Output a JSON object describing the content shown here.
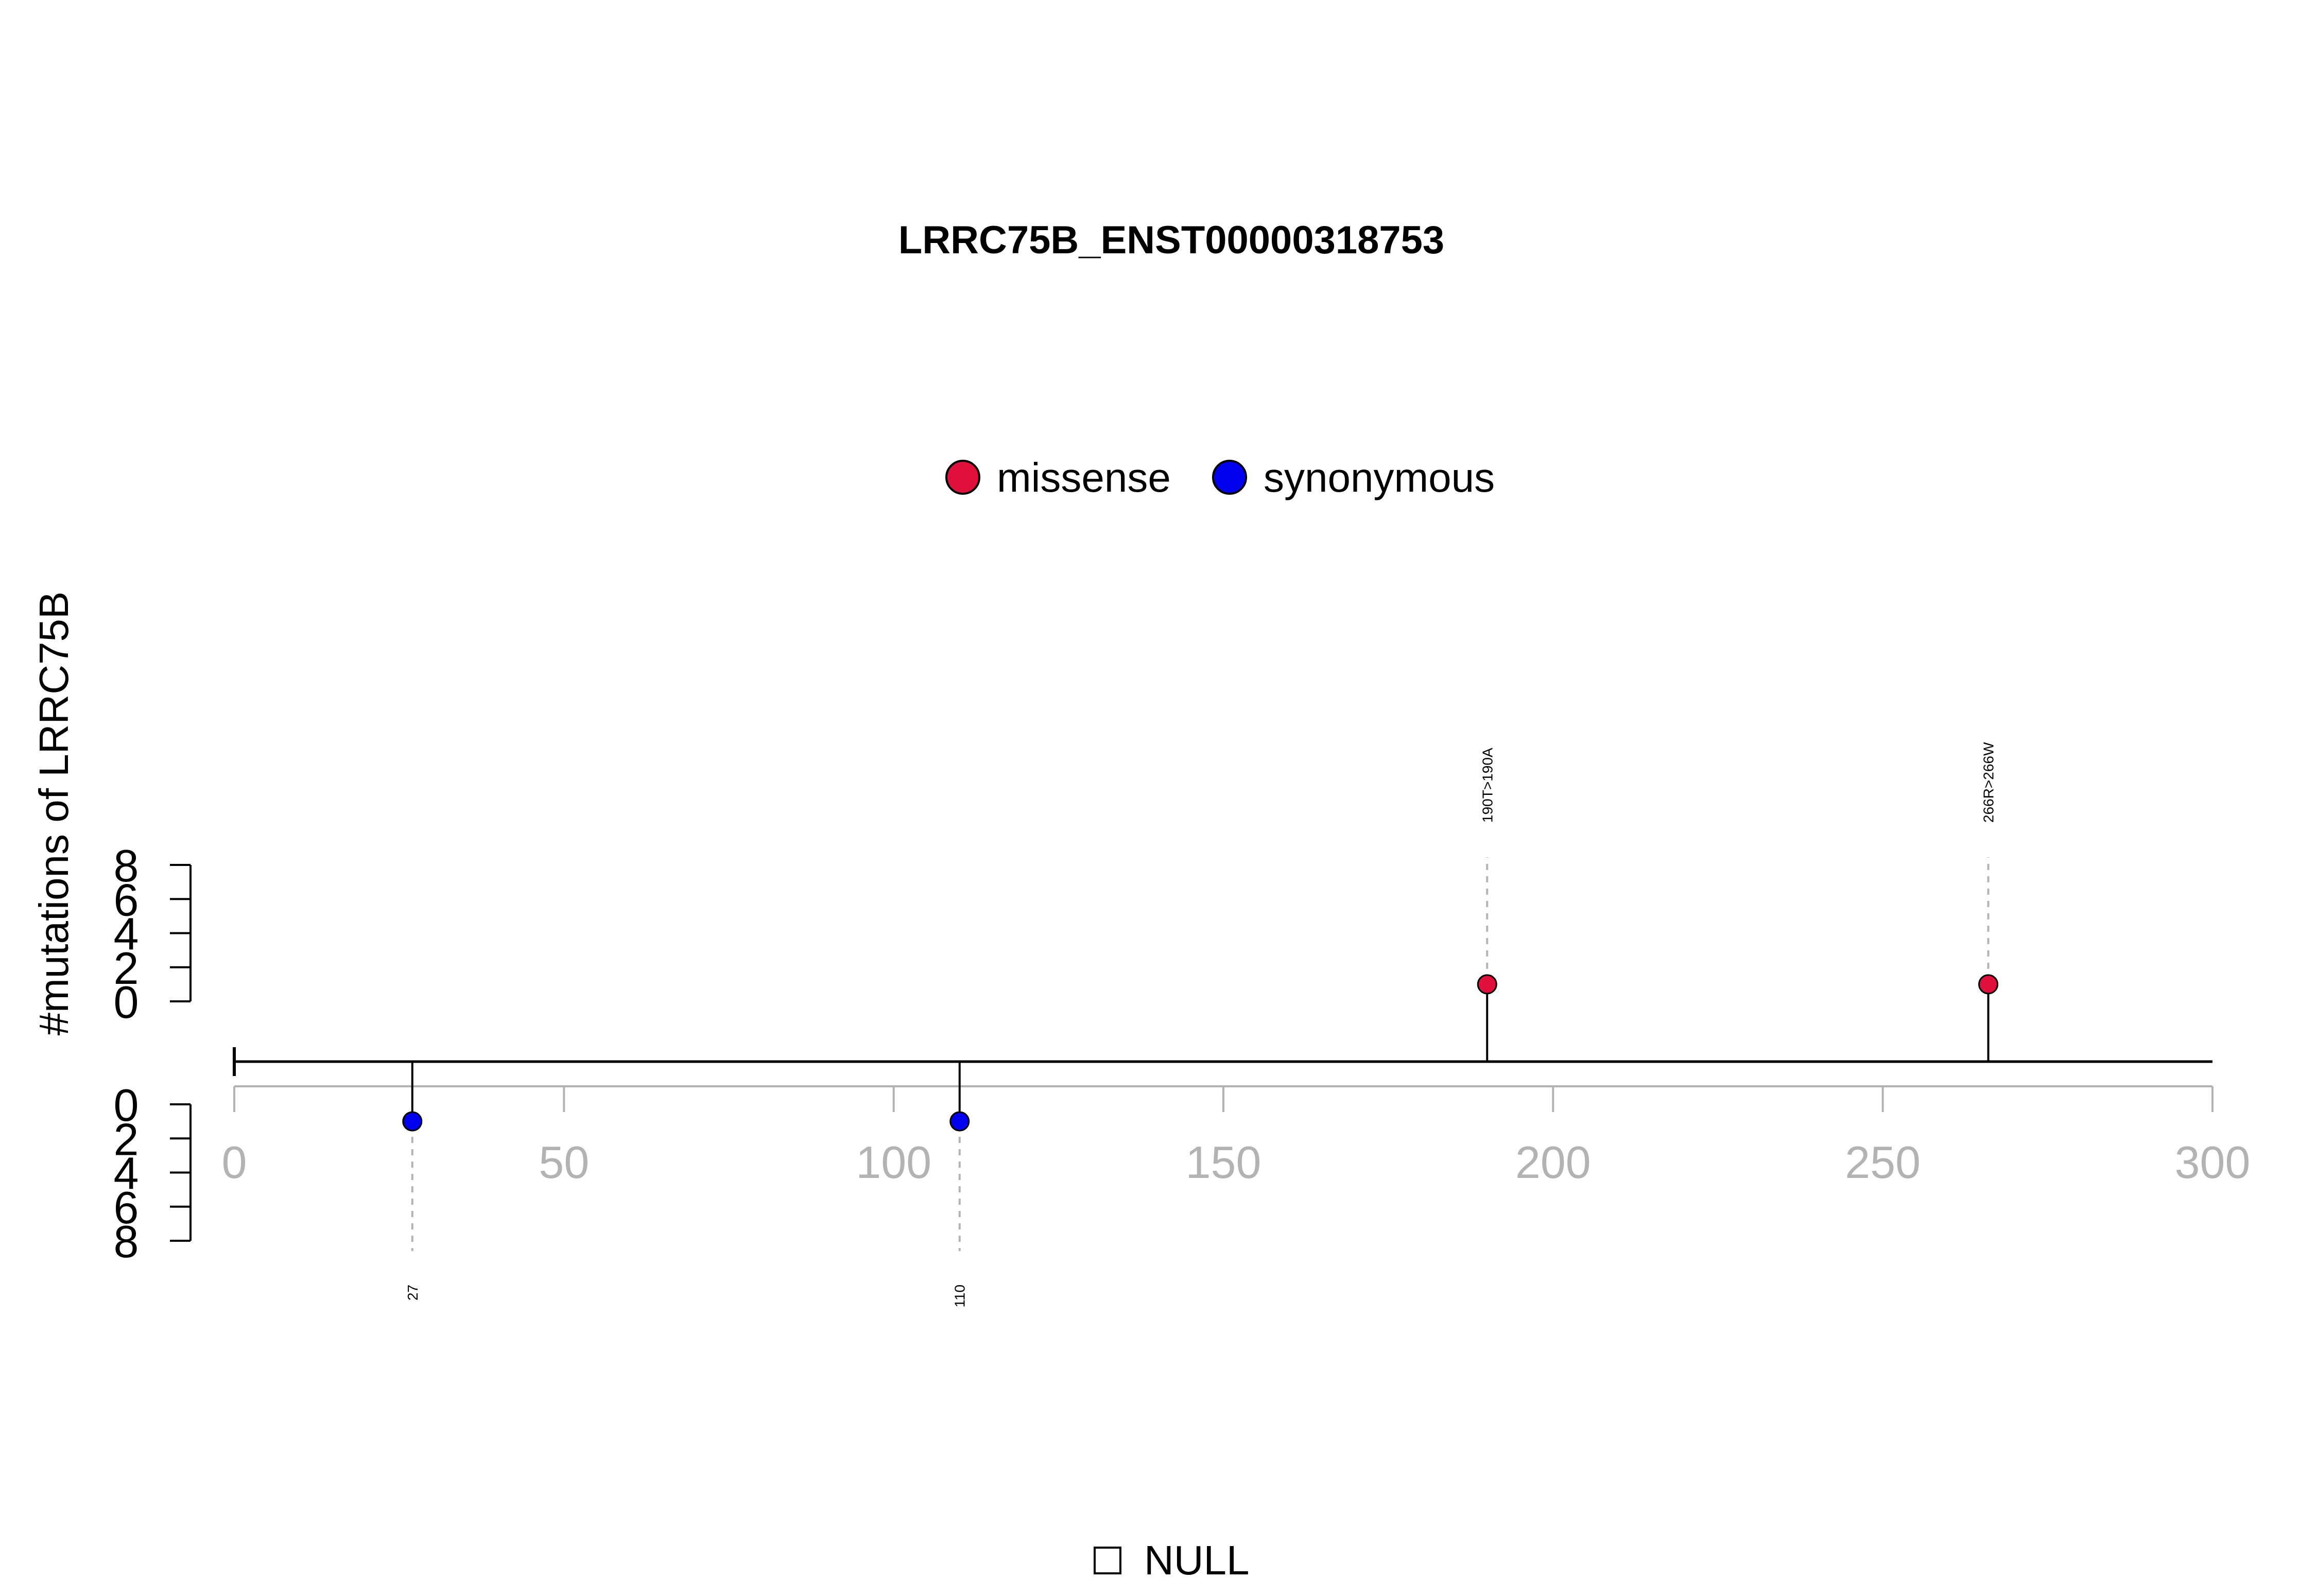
{
  "chart_data": {
    "type": "lollipop",
    "title": "LRRC75B_ENST00000318753",
    "ylabel": "#mutations of LRRC75B",
    "xlim": [
      0,
      300
    ],
    "x_ticks": [
      0,
      50,
      100,
      150,
      200,
      250,
      300
    ],
    "y_ticks_upper": [
      8,
      6,
      4,
      2,
      0
    ],
    "y_ticks_lower": [
      0,
      2,
      4,
      6,
      8
    ],
    "legend": [
      {
        "name": "missense",
        "color": "#e0103c"
      },
      {
        "name": "synonymous",
        "color": "#0000ee"
      }
    ],
    "mutations": [
      {
        "position": 27,
        "count": 1,
        "type": "synonymous",
        "side": "lower",
        "label": "27"
      },
      {
        "position": 110,
        "count": 1,
        "type": "synonymous",
        "side": "lower",
        "label": "110"
      },
      {
        "position": 190,
        "count": 1,
        "type": "missense",
        "side": "upper",
        "label": "190T>190A"
      },
      {
        "position": 266,
        "count": 1,
        "type": "missense",
        "side": "upper",
        "label": "266R>266W"
      }
    ],
    "domain_legend": "NULL"
  }
}
